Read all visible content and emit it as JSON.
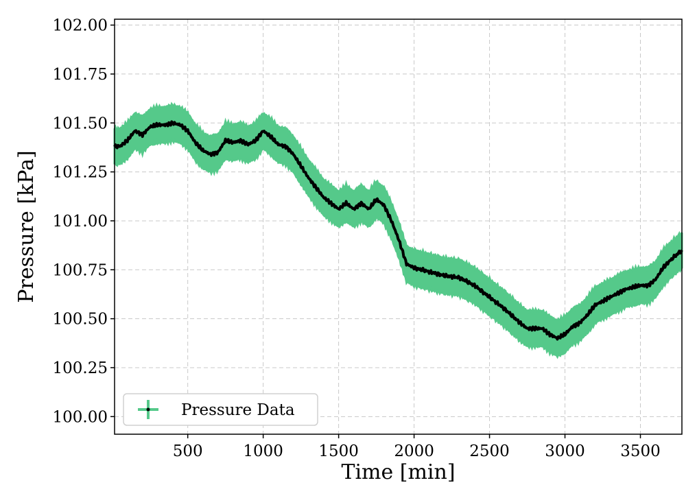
{
  "chart_data": {
    "type": "line",
    "title": "",
    "xlabel": "Time [min]",
    "ylabel": "Pressure [kPa]",
    "xlim": [
      15,
      3775
    ],
    "ylim": [
      99.91,
      102.03
    ],
    "xticks": [
      500,
      1000,
      1500,
      2000,
      2500,
      3000,
      3500
    ],
    "yticks": [
      100.0,
      100.25,
      100.5,
      100.75,
      101.0,
      101.25,
      101.5,
      101.75,
      102.0
    ],
    "ytick_labels": [
      "100.00",
      "100.25",
      "100.50",
      "100.75",
      "101.00",
      "101.25",
      "101.50",
      "101.75",
      "102.00"
    ],
    "grid": true,
    "legend_position": "lower-left",
    "error_band": 0.09,
    "colors": {
      "band": "#55c98a",
      "line": "#000000"
    },
    "series": [
      {
        "name": "Pressure Data",
        "x": [
          15,
          50,
          100,
          150,
          200,
          250,
          300,
          350,
          400,
          450,
          500,
          550,
          600,
          650,
          700,
          750,
          800,
          850,
          900,
          950,
          1000,
          1050,
          1100,
          1150,
          1200,
          1250,
          1300,
          1350,
          1400,
          1450,
          1500,
          1550,
          1600,
          1650,
          1700,
          1750,
          1800,
          1850,
          1900,
          1950,
          2000,
          2100,
          2200,
          2300,
          2400,
          2500,
          2600,
          2700,
          2750,
          2800,
          2850,
          2900,
          2950,
          3000,
          3050,
          3100,
          3150,
          3200,
          3250,
          3300,
          3350,
          3400,
          3450,
          3500,
          3550,
          3600,
          3650,
          3700,
          3775
        ],
        "y": [
          101.38,
          101.38,
          101.41,
          101.46,
          101.44,
          101.48,
          101.49,
          101.49,
          101.5,
          101.49,
          101.46,
          101.4,
          101.36,
          101.34,
          101.35,
          101.41,
          101.4,
          101.41,
          101.39,
          101.41,
          101.46,
          101.43,
          101.39,
          101.38,
          101.34,
          101.28,
          101.22,
          101.17,
          101.12,
          101.09,
          101.06,
          101.09,
          101.06,
          101.09,
          101.06,
          101.11,
          101.08,
          101.0,
          100.9,
          100.78,
          100.76,
          100.74,
          100.72,
          100.71,
          100.67,
          100.61,
          100.55,
          100.48,
          100.45,
          100.45,
          100.45,
          100.42,
          100.4,
          100.42,
          100.46,
          100.48,
          100.52,
          100.57,
          100.59,
          100.61,
          100.63,
          100.65,
          100.66,
          100.67,
          100.67,
          100.7,
          100.76,
          100.8,
          100.85
        ]
      }
    ]
  }
}
